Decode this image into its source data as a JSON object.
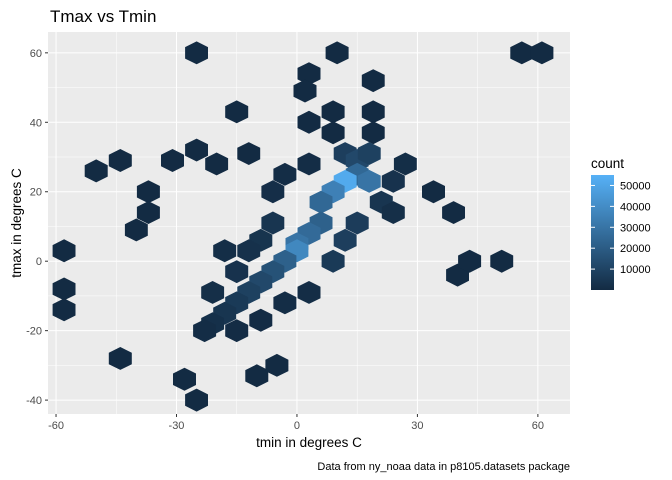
{
  "chart_data": {
    "type": "heatmap",
    "subtype": "hexbin",
    "title": "Tmax vs Tmin",
    "xlabel": "tmin in degrees C",
    "ylabel": "tmax in degrees C",
    "caption": "Data from ny_noaa data in p8105.datasets package",
    "xlim": [
      -62,
      68
    ],
    "ylim": [
      -44,
      66
    ],
    "x_ticks": [
      -60,
      -30,
      0,
      30,
      60
    ],
    "y_ticks": [
      -40,
      -20,
      0,
      20,
      40,
      60
    ],
    "x_tick_labels": [
      "-60",
      "-30",
      "0",
      "30",
      "60"
    ],
    "y_tick_labels": [
      "-40",
      "-20",
      "0",
      "20",
      "40",
      "60"
    ],
    "grid": true,
    "legend": {
      "title": "count",
      "position": "right",
      "breaks": [
        10000,
        20000,
        30000,
        40000,
        50000
      ],
      "labels": [
        "10000",
        "20000",
        "30000",
        "40000",
        "50000"
      ],
      "min": 1,
      "max": 55000,
      "low_color": "#132b43",
      "high_color": "#56b1f7"
    },
    "bins": [
      {
        "x": -25,
        "y": 60,
        "count": 1
      },
      {
        "x": 10,
        "y": 60,
        "count": 1
      },
      {
        "x": 56,
        "y": 60,
        "count": 1
      },
      {
        "x": 61,
        "y": 60,
        "count": 1
      },
      {
        "x": 3,
        "y": 54,
        "count": 1
      },
      {
        "x": 19,
        "y": 52,
        "count": 1
      },
      {
        "x": 2,
        "y": 49,
        "count": 2
      },
      {
        "x": -50,
        "y": 26,
        "count": 2
      },
      {
        "x": -44,
        "y": 29,
        "count": 2
      },
      {
        "x": -31,
        "y": 29,
        "count": 2
      },
      {
        "x": -25,
        "y": 32,
        "count": 3
      },
      {
        "x": -37,
        "y": 20,
        "count": 3
      },
      {
        "x": -37,
        "y": 14,
        "count": 4
      },
      {
        "x": -40,
        "y": 9,
        "count": 4
      },
      {
        "x": -58,
        "y": 3,
        "count": 2
      },
      {
        "x": -58,
        "y": -8,
        "count": 2
      },
      {
        "x": -58,
        "y": -14,
        "count": 2
      },
      {
        "x": -44,
        "y": -28,
        "count": 3
      },
      {
        "x": -25,
        "y": -40,
        "count": 2
      },
      {
        "x": -28,
        "y": -34,
        "count": 2
      },
      {
        "x": -10,
        "y": -33,
        "count": 3
      },
      {
        "x": -5,
        "y": -30,
        "count": 3
      },
      {
        "x": 51,
        "y": 0,
        "count": 2
      },
      {
        "x": 39,
        "y": 14,
        "count": 3
      },
      {
        "x": 34,
        "y": 20,
        "count": 4
      },
      {
        "x": 40,
        "y": -4,
        "count": 3
      },
      {
        "x": 43,
        "y": 0,
        "count": 3
      },
      {
        "x": -15,
        "y": 43,
        "count": 1
      },
      {
        "x": 19,
        "y": 43,
        "count": 3
      },
      {
        "x": 9,
        "y": 43,
        "count": 4
      },
      {
        "x": 3,
        "y": 40,
        "count": 12
      },
      {
        "x": 19,
        "y": 37,
        "count": 40
      },
      {
        "x": 9,
        "y": 37,
        "count": 120
      },
      {
        "x": -20,
        "y": 28,
        "count": 150
      },
      {
        "x": -12,
        "y": 31,
        "count": 80
      },
      {
        "x": 12,
        "y": 31,
        "count": 8000
      },
      {
        "x": 15,
        "y": 29,
        "count": 12000
      },
      {
        "x": 18,
        "y": 31,
        "count": 9000
      },
      {
        "x": 15,
        "y": 25,
        "count": 25000
      },
      {
        "x": 12,
        "y": 23,
        "count": 52000
      },
      {
        "x": 9,
        "y": 20,
        "count": 35000
      },
      {
        "x": 18,
        "y": 23,
        "count": 30000
      },
      {
        "x": 6,
        "y": 17,
        "count": 25000
      },
      {
        "x": 6,
        "y": 11,
        "count": 22000
      },
      {
        "x": 3,
        "y": 8,
        "count": 26000
      },
      {
        "x": 0,
        "y": 5,
        "count": 30000
      },
      {
        "x": 0,
        "y": 3,
        "count": 38000
      },
      {
        "x": -3,
        "y": 0,
        "count": 22000
      },
      {
        "x": -6,
        "y": -3,
        "count": 16000
      },
      {
        "x": -9,
        "y": -6,
        "count": 12000
      },
      {
        "x": -12,
        "y": -9,
        "count": 9000
      },
      {
        "x": -15,
        "y": -12,
        "count": 6000
      },
      {
        "x": -18,
        "y": -15,
        "count": 4000
      },
      {
        "x": -21,
        "y": -18,
        "count": 2000
      },
      {
        "x": -23,
        "y": -20,
        "count": 900
      },
      {
        "x": -15,
        "y": -20,
        "count": 600
      },
      {
        "x": -9,
        "y": -17,
        "count": 500
      },
      {
        "x": -3,
        "y": -12,
        "count": 800
      },
      {
        "x": 3,
        "y": -9,
        "count": 900
      },
      {
        "x": 9,
        "y": 0,
        "count": 6000
      },
      {
        "x": 12,
        "y": 6,
        "count": 8000
      },
      {
        "x": 15,
        "y": 11,
        "count": 7000
      },
      {
        "x": 21,
        "y": 17,
        "count": 4000
      },
      {
        "x": 24,
        "y": 23,
        "count": 3000
      },
      {
        "x": 27,
        "y": 28,
        "count": 1200
      },
      {
        "x": 24,
        "y": 14,
        "count": 1500
      },
      {
        "x": -6,
        "y": 11,
        "count": 4000
      },
      {
        "x": -9,
        "y": 6,
        "count": 3500
      },
      {
        "x": -12,
        "y": 3,
        "count": 2500
      },
      {
        "x": -15,
        "y": -3,
        "count": 3000
      },
      {
        "x": -18,
        "y": 3,
        "count": 1200
      },
      {
        "x": -21,
        "y": -9,
        "count": 1500
      },
      {
        "x": -6,
        "y": 20,
        "count": 1400
      },
      {
        "x": -3,
        "y": 25,
        "count": 1000
      },
      {
        "x": 3,
        "y": 28,
        "count": 800
      }
    ]
  }
}
